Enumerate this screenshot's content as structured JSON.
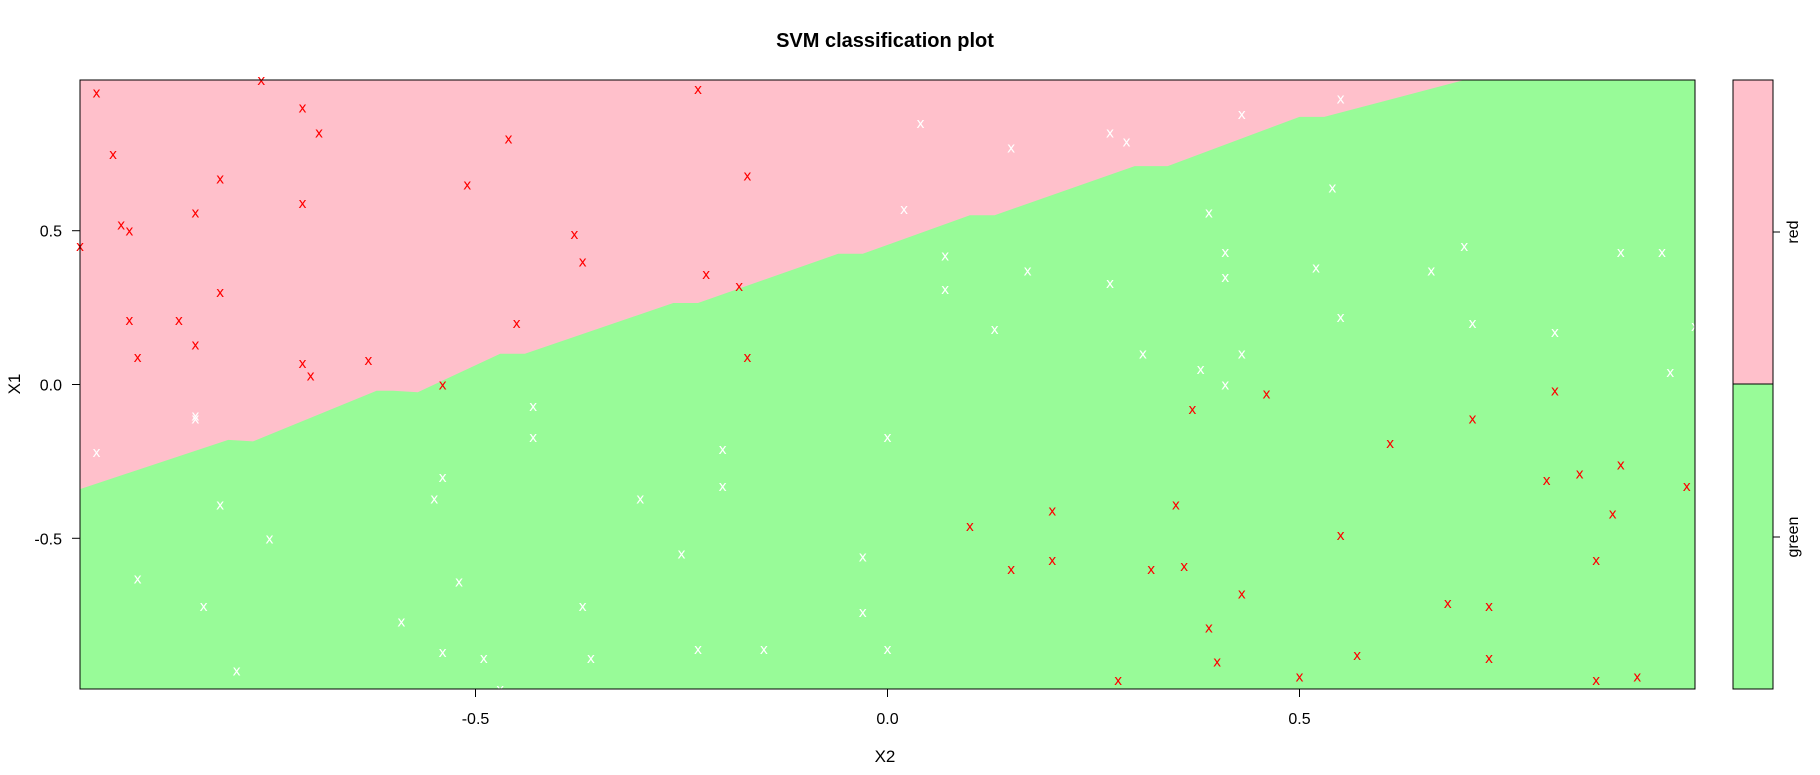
{
  "chart_data": {
    "type": "scatter",
    "title": "SVM classification plot",
    "xlabel": "X2",
    "ylabel": "X1",
    "xlim": [
      -0.98,
      0.98
    ],
    "ylim": [
      -0.99,
      0.99
    ],
    "xticks": [
      "-0.5",
      "0.0",
      "0.5"
    ],
    "xtick_values": [
      -0.5,
      0.0,
      0.5
    ],
    "yticks": [
      "-0.5",
      "0.0",
      "0.5"
    ],
    "ytick_values": [
      -0.5,
      0.0,
      0.5
    ],
    "point_marker": "x",
    "regions": {
      "red": {
        "label": "red",
        "color": "#ffc0cb"
      },
      "green": {
        "label": "green",
        "color": "#98fb98"
      }
    },
    "decision_boundary": {
      "x": [
        -0.98,
        -0.8,
        -0.77,
        -0.62,
        -0.6,
        -0.57,
        -0.47,
        -0.44,
        -0.26,
        -0.23,
        -0.06,
        -0.03,
        0.1,
        0.13,
        0.3,
        0.34,
        0.5,
        0.53,
        0.7,
        0.72,
        0.98
      ],
      "y": [
        -0.34,
        -0.18,
        -0.185,
        -0.02,
        -0.02,
        -0.025,
        0.1,
        0.1,
        0.265,
        0.265,
        0.425,
        0.425,
        0.55,
        0.55,
        0.71,
        0.71,
        0.87,
        0.87,
        1.0,
        1.0,
        1.0
      ]
    },
    "series": [
      {
        "name": "red",
        "color": "#ff0000",
        "points": [
          {
            "x": -0.96,
            "y": 0.95
          },
          {
            "x": -0.94,
            "y": 0.75
          },
          {
            "x": -0.93,
            "y": 0.52
          },
          {
            "x": -0.92,
            "y": 0.5
          },
          {
            "x": -0.92,
            "y": 0.21
          },
          {
            "x": -0.91,
            "y": 0.09
          },
          {
            "x": -0.86,
            "y": 0.21
          },
          {
            "x": -0.84,
            "y": 0.56
          },
          {
            "x": -0.84,
            "y": 0.13
          },
          {
            "x": -0.81,
            "y": 0.67
          },
          {
            "x": -0.81,
            "y": 0.3
          },
          {
            "x": -0.76,
            "y": 0.99
          },
          {
            "x": -0.71,
            "y": 0.9
          },
          {
            "x": -0.71,
            "y": 0.59
          },
          {
            "x": -0.71,
            "y": 0.07
          },
          {
            "x": -0.7,
            "y": 0.03
          },
          {
            "x": -0.69,
            "y": 0.82
          },
          {
            "x": -0.63,
            "y": 0.08
          },
          {
            "x": -0.54,
            "y": 0.0
          },
          {
            "x": -0.51,
            "y": 0.65
          },
          {
            "x": -0.46,
            "y": 0.8
          },
          {
            "x": -0.45,
            "y": 0.2
          },
          {
            "x": -0.38,
            "y": 0.49
          },
          {
            "x": -0.37,
            "y": 0.4
          },
          {
            "x": -0.23,
            "y": 0.96
          },
          {
            "x": -0.22,
            "y": 0.36
          },
          {
            "x": -0.18,
            "y": 0.32
          },
          {
            "x": -0.17,
            "y": 0.68
          },
          {
            "x": -0.17,
            "y": 0.09
          },
          {
            "x": -0.98,
            "y": 0.45
          },
          {
            "x": 0.1,
            "y": -0.46
          },
          {
            "x": 0.15,
            "y": -0.6
          },
          {
            "x": 0.2,
            "y": -0.41
          },
          {
            "x": 0.2,
            "y": -0.57
          },
          {
            "x": 0.28,
            "y": -0.96
          },
          {
            "x": 0.32,
            "y": -0.6
          },
          {
            "x": 0.35,
            "y": -0.39
          },
          {
            "x": 0.36,
            "y": -0.59
          },
          {
            "x": 0.37,
            "y": -0.08
          },
          {
            "x": 0.39,
            "y": -0.79
          },
          {
            "x": 0.4,
            "y": -0.9
          },
          {
            "x": 0.43,
            "y": -0.68
          },
          {
            "x": 0.46,
            "y": -0.03
          },
          {
            "x": 0.5,
            "y": -0.95
          },
          {
            "x": 0.55,
            "y": -0.49
          },
          {
            "x": 0.57,
            "y": -0.88
          },
          {
            "x": 0.61,
            "y": -0.19
          },
          {
            "x": 0.68,
            "y": -0.71
          },
          {
            "x": 0.71,
            "y": -0.11
          },
          {
            "x": 0.73,
            "y": -0.72
          },
          {
            "x": 0.73,
            "y": -0.89
          },
          {
            "x": 0.8,
            "y": -0.31
          },
          {
            "x": 0.81,
            "y": -0.02
          },
          {
            "x": 0.84,
            "y": -0.29
          },
          {
            "x": 0.86,
            "y": -0.96
          },
          {
            "x": 0.86,
            "y": -0.57
          },
          {
            "x": 0.88,
            "y": -0.42
          },
          {
            "x": 0.89,
            "y": -0.26
          },
          {
            "x": 0.91,
            "y": -0.95
          },
          {
            "x": 0.97,
            "y": -0.33
          }
        ]
      },
      {
        "name": "green",
        "color": "#ffffff",
        "points": [
          {
            "x": -0.96,
            "y": -0.22
          },
          {
            "x": -0.91,
            "y": -0.63
          },
          {
            "x": -0.84,
            "y": -0.11
          },
          {
            "x": -0.83,
            "y": -0.72
          },
          {
            "x": -0.81,
            "y": -0.39
          },
          {
            "x": -0.79,
            "y": -0.93
          },
          {
            "x": -0.75,
            "y": -0.5
          },
          {
            "x": -0.84,
            "y": -0.1
          },
          {
            "x": -0.59,
            "y": -0.77
          },
          {
            "x": -0.55,
            "y": -0.37
          },
          {
            "x": -0.54,
            "y": -0.3
          },
          {
            "x": -0.54,
            "y": -0.87
          },
          {
            "x": -0.52,
            "y": -0.64
          },
          {
            "x": -0.49,
            "y": -0.89
          },
          {
            "x": -0.47,
            "y": -0.99
          },
          {
            "x": -0.43,
            "y": -0.07
          },
          {
            "x": -0.43,
            "y": -0.17
          },
          {
            "x": -0.37,
            "y": -0.72
          },
          {
            "x": -0.36,
            "y": -0.89
          },
          {
            "x": -0.3,
            "y": -0.37
          },
          {
            "x": -0.25,
            "y": -0.55
          },
          {
            "x": -0.23,
            "y": -0.86
          },
          {
            "x": -0.2,
            "y": -0.21
          },
          {
            "x": -0.2,
            "y": -0.33
          },
          {
            "x": -0.15,
            "y": -0.86
          },
          {
            "x": -0.03,
            "y": -0.56
          },
          {
            "x": -0.03,
            "y": -0.74
          },
          {
            "x": 0.0,
            "y": -0.17
          },
          {
            "x": 0.0,
            "y": -0.86
          },
          {
            "x": 0.02,
            "y": 0.57
          },
          {
            "x": 0.04,
            "y": 0.85
          },
          {
            "x": 0.07,
            "y": 0.42
          },
          {
            "x": 0.07,
            "y": 0.31
          },
          {
            "x": 0.13,
            "y": 0.18
          },
          {
            "x": 0.15,
            "y": 0.77
          },
          {
            "x": 0.17,
            "y": 0.37
          },
          {
            "x": 0.27,
            "y": 0.82
          },
          {
            "x": 0.27,
            "y": 0.33
          },
          {
            "x": 0.29,
            "y": 0.79
          },
          {
            "x": 0.31,
            "y": 0.1
          },
          {
            "x": 0.39,
            "y": 0.56
          },
          {
            "x": 0.38,
            "y": 0.05
          },
          {
            "x": 0.41,
            "y": 0.43
          },
          {
            "x": 0.41,
            "y": 0.35
          },
          {
            "x": 0.41,
            "y": 0.0
          },
          {
            "x": 0.43,
            "y": 0.88
          },
          {
            "x": 0.43,
            "y": 0.1
          },
          {
            "x": 0.52,
            "y": 0.38
          },
          {
            "x": 0.54,
            "y": 0.64
          },
          {
            "x": 0.55,
            "y": 0.22
          },
          {
            "x": 0.55,
            "y": 0.93
          },
          {
            "x": 0.66,
            "y": 0.37
          },
          {
            "x": 0.7,
            "y": 0.45
          },
          {
            "x": 0.71,
            "y": 0.2
          },
          {
            "x": 0.81,
            "y": 0.17
          },
          {
            "x": 0.89,
            "y": 0.43
          },
          {
            "x": 0.94,
            "y": 0.43
          },
          {
            "x": 0.95,
            "y": 0.04
          },
          {
            "x": 0.98,
            "y": 0.19
          }
        ]
      }
    ]
  }
}
